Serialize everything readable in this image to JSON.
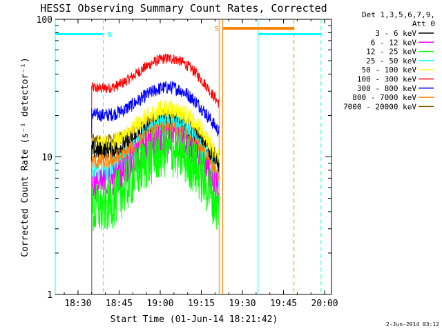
{
  "chart_data": {
    "type": "line",
    "title": "HESSI Observing Summary Count Rates, Corrected",
    "xlabel": "Start Time (01-Jun-14 18:21:42)",
    "ylabel": "Corrected Count Rate (s⁻¹ detector⁻¹)",
    "yscale": "log",
    "ylim": [
      1,
      100
    ],
    "xlim_minutes_after_18_00": [
      21.7,
      122.5
    ],
    "x_ticks": [
      "18:30",
      "18:45",
      "19:00",
      "19:15",
      "19:30",
      "19:45",
      "20:00"
    ],
    "x_tick_minutes_after_18_00": [
      30,
      45,
      60,
      75,
      90,
      105,
      120
    ],
    "y_ticks": [
      "1",
      "10",
      "100"
    ],
    "y_tick_values": [
      1,
      10,
      100
    ],
    "legend_header": [
      "Det 1,3,5,6,7,9,",
      "Att 0"
    ],
    "legend_position": "right",
    "series": [
      {
        "name": "3 - 6 keV",
        "color": "#000000",
        "start": 35,
        "end": 81.5,
        "base": 11,
        "peak": 17.5,
        "noise": 0.07
      },
      {
        "name": "6 - 12 keV",
        "color": "#ff00ff",
        "start": 35,
        "end": 81.5,
        "base": 5.8,
        "peak": 13.5,
        "noise": 0.12
      },
      {
        "name": "12 - 25 keV",
        "color": "#00ff00",
        "start": 35,
        "end": 81.5,
        "base": 3.7,
        "peak": 11,
        "noise": 0.2
      },
      {
        "name": "25 - 50 keV",
        "color": "#00ffff",
        "start": 35,
        "end": 81.5,
        "base": 7,
        "peak": 17,
        "noise": 0.08
      },
      {
        "name": "50 - 100 keV",
        "color": "#ffff00",
        "start": 35,
        "end": 81.5,
        "base": 11.5,
        "peak": 22,
        "noise": 0.08
      },
      {
        "name": "100 - 300 keV",
        "color": "#ff0000",
        "start": 35,
        "end": 81.5,
        "base": 31,
        "peak": 52,
        "noise": 0.04
      },
      {
        "name": "300 - 800 keV",
        "color": "#0000ff",
        "start": 35,
        "end": 81.5,
        "base": 20,
        "peak": 32,
        "noise": 0.05
      },
      {
        "name": "800 - 7000 keV",
        "color": "#ff8000",
        "start": 35,
        "end": 81.5,
        "base": 9,
        "peak": 16,
        "noise": 0.06
      },
      {
        "name": "7000 - 20000 keV",
        "color": "#806000",
        "start": 35,
        "end": 81.5,
        "base": 13,
        "peak": 20,
        "noise": 0.05
      }
    ],
    "markers": [
      {
        "label": "N",
        "color": "#00ffff",
        "kind": "night",
        "value": 78,
        "segments": [
          [
            21.7,
            39.2
          ],
          [
            95.7,
            118.7
          ]
        ],
        "solid_minutes": [
          21.7,
          95.7
        ],
        "dashed_minutes": [
          39.2,
          118.7
        ]
      },
      {
        "label": "S",
        "color": "#ff8000",
        "kind": "saa",
        "value": 86,
        "segments": [
          [
            82.8,
            108.8
          ]
        ],
        "solid_minutes": [
          82.8
        ],
        "dashed_minutes": [
          108.8
        ]
      }
    ],
    "data_gap_lines_minutes": [
      81.5,
      82.8
    ],
    "start_edge_minutes": 35,
    "footer_date": "2-Jun-2014 03:12"
  }
}
